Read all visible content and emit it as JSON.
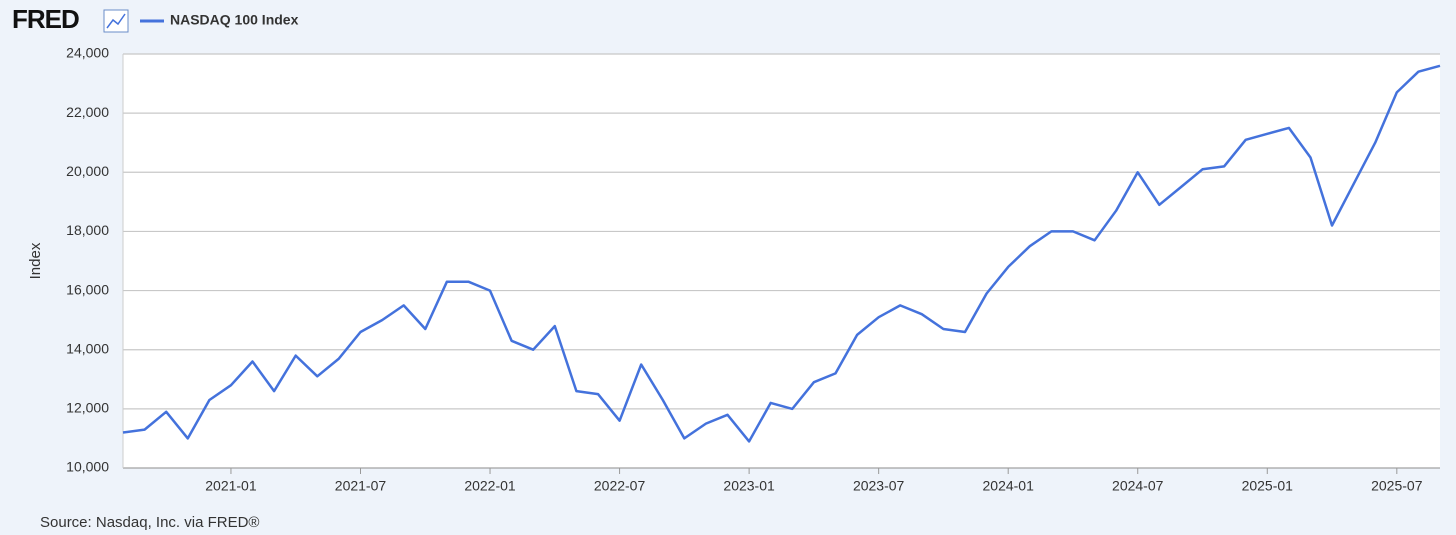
{
  "logo": "FRED",
  "source": "Source: Nasdaq, Inc. via FRED®",
  "chart_data": {
    "type": "line",
    "ylabel": "Index",
    "x": [
      "2020-08",
      "2020-09",
      "2020-10",
      "2020-11",
      "2020-12",
      "2021-01",
      "2021-02",
      "2021-03",
      "2021-04",
      "2021-05",
      "2021-06",
      "2021-07",
      "2021-08",
      "2021-09",
      "2021-10",
      "2021-11",
      "2021-12",
      "2022-01",
      "2022-02",
      "2022-03",
      "2022-04",
      "2022-05",
      "2022-06",
      "2022-07",
      "2022-08",
      "2022-09",
      "2022-10",
      "2022-11",
      "2022-12",
      "2023-01",
      "2023-02",
      "2023-03",
      "2023-04",
      "2023-05",
      "2023-06",
      "2023-07",
      "2023-08",
      "2023-09",
      "2023-10",
      "2023-11",
      "2023-12",
      "2024-01",
      "2024-02",
      "2024-03",
      "2024-04",
      "2024-05",
      "2024-06",
      "2024-07",
      "2024-08",
      "2024-09",
      "2024-10",
      "2024-11",
      "2024-12",
      "2025-01",
      "2025-02",
      "2025-03",
      "2025-04",
      "2025-05",
      "2025-06",
      "2025-07",
      "2025-08",
      "2025-09"
    ],
    "series": [
      {
        "name": "NASDAQ 100 Index",
        "color": "#4472dc",
        "values": [
          11200,
          11300,
          11900,
          11000,
          12300,
          12800,
          13600,
          12600,
          13800,
          13100,
          13700,
          14600,
          15000,
          15500,
          14700,
          16300,
          16300,
          16000,
          14300,
          14000,
          14800,
          12600,
          12500,
          11600,
          13500,
          12300,
          11000,
          11500,
          11800,
          10900,
          12200,
          12000,
          12900,
          13200,
          14500,
          15100,
          15500,
          15200,
          14700,
          14600,
          15900,
          16800,
          17500,
          18000,
          18000,
          17700,
          18700,
          20000,
          18900,
          19500,
          20100,
          20200,
          21100,
          21300,
          21500,
          20500,
          18200,
          19600,
          21000,
          22700,
          23400,
          23600
        ]
      }
    ],
    "xlim": [
      "2020-08",
      "2025-09"
    ],
    "xticks": [
      "2021-01",
      "2021-07",
      "2022-01",
      "2022-07",
      "2023-01",
      "2023-07",
      "2024-01",
      "2024-07",
      "2025-01",
      "2025-07"
    ],
    "ylim": [
      10000,
      24000
    ],
    "yticks": [
      {
        "value": 10000,
        "label": "10,000"
      },
      {
        "value": 12000,
        "label": "12,000"
      },
      {
        "value": 14000,
        "label": "14,000"
      },
      {
        "value": 16000,
        "label": "16,000"
      },
      {
        "value": 18000,
        "label": "18,000"
      },
      {
        "value": 20000,
        "label": "20,000"
      },
      {
        "value": 22000,
        "label": "22,000"
      },
      {
        "value": 24000,
        "label": "24,000"
      }
    ],
    "grid": true
  }
}
